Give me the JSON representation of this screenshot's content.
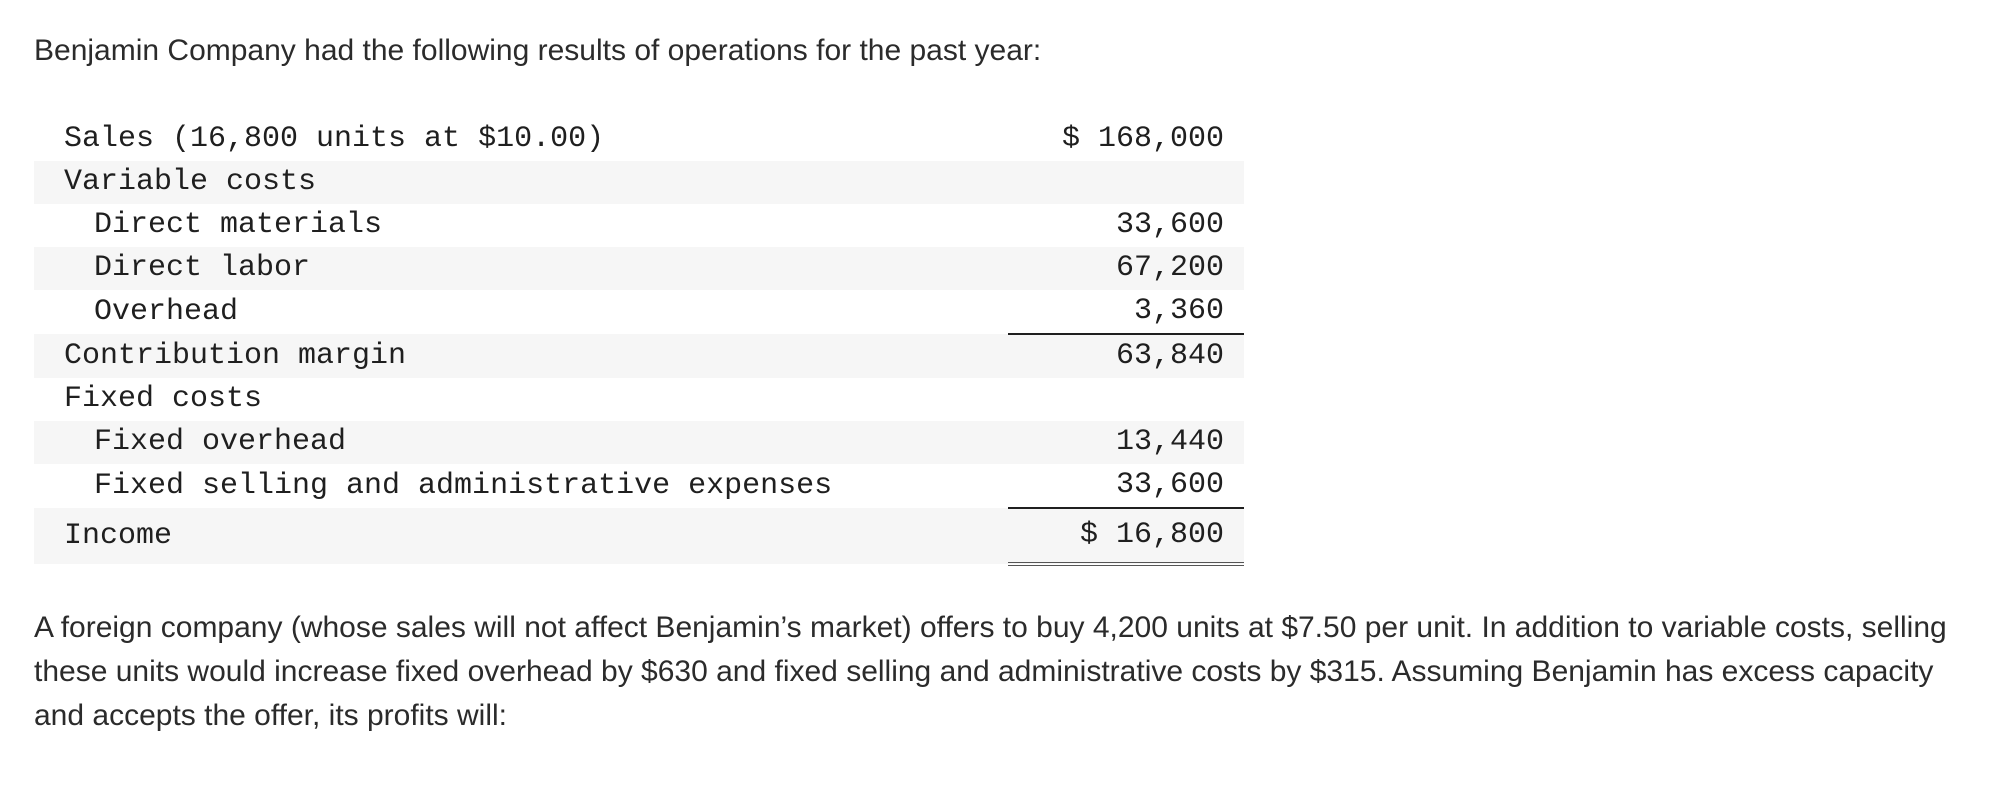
{
  "intro": "Benjamin Company had the following results of operations for the past year:",
  "statement": {
    "rows": [
      {
        "label": "Sales (16,800 units at $10.00)",
        "amount": "$ 168,000"
      },
      {
        "label": "Variable costs",
        "amount": ""
      },
      {
        "label": "Direct materials",
        "amount": "33,600"
      },
      {
        "label": "Direct labor",
        "amount": "67,200"
      },
      {
        "label": "Overhead",
        "amount": "3,360"
      },
      {
        "label": "Contribution margin",
        "amount": "63,840"
      },
      {
        "label": "Fixed costs",
        "amount": ""
      },
      {
        "label": "Fixed overhead",
        "amount": "13,440"
      },
      {
        "label": "Fixed selling and administrative expenses",
        "amount": "33,600"
      },
      {
        "label": "Income",
        "amount": "$ 16,800"
      }
    ]
  },
  "question": "A foreign company (whose sales will not affect Benjamin’s market) offers to buy 4,200 units at $7.50 per unit. In addition to variable costs, selling these units would increase fixed overhead by $630 and fixed selling and administrative costs by $315. Assuming Benjamin has excess capacity and accepts the offer, its profits will:"
}
